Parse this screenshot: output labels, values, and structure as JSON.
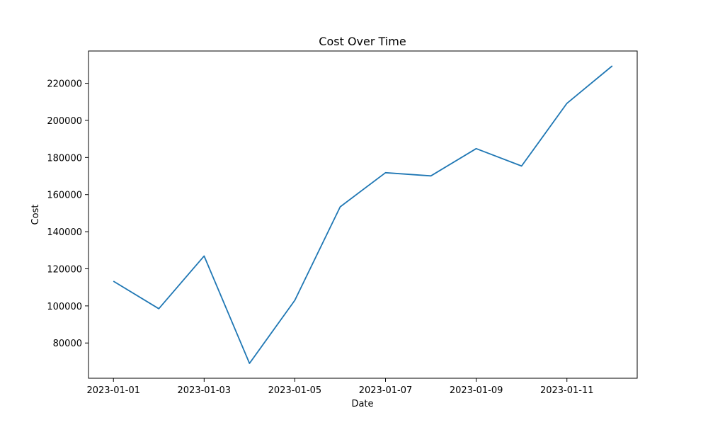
{
  "chart_data": {
    "type": "line",
    "title": "Cost Over Time",
    "xlabel": "Date",
    "ylabel": "Cost",
    "x": [
      "2023-01-01",
      "2023-01-02",
      "2023-01-03",
      "2023-01-04",
      "2023-01-05",
      "2023-01-06",
      "2023-01-07",
      "2023-01-08",
      "2023-01-09",
      "2023-01-10",
      "2023-01-11",
      "2023-01-12"
    ],
    "series": [
      {
        "values": [
          113300,
          98500,
          126900,
          69000,
          103000,
          153400,
          171800,
          170100,
          184800,
          175400,
          209200,
          229400
        ]
      }
    ],
    "x_ticks": [
      "2023-01-01",
      "2023-01-03",
      "2023-01-05",
      "2023-01-07",
      "2023-01-09",
      "2023-01-11"
    ],
    "y_ticks": [
      80000,
      100000,
      120000,
      140000,
      160000,
      180000,
      200000,
      220000
    ],
    "xlim": [
      "2022-12-31T10:48:00",
      "2023-01-12T13:12:00"
    ],
    "ylim": [
      61000,
      237400
    ],
    "grid": false,
    "line_color": "#1f77b4"
  }
}
